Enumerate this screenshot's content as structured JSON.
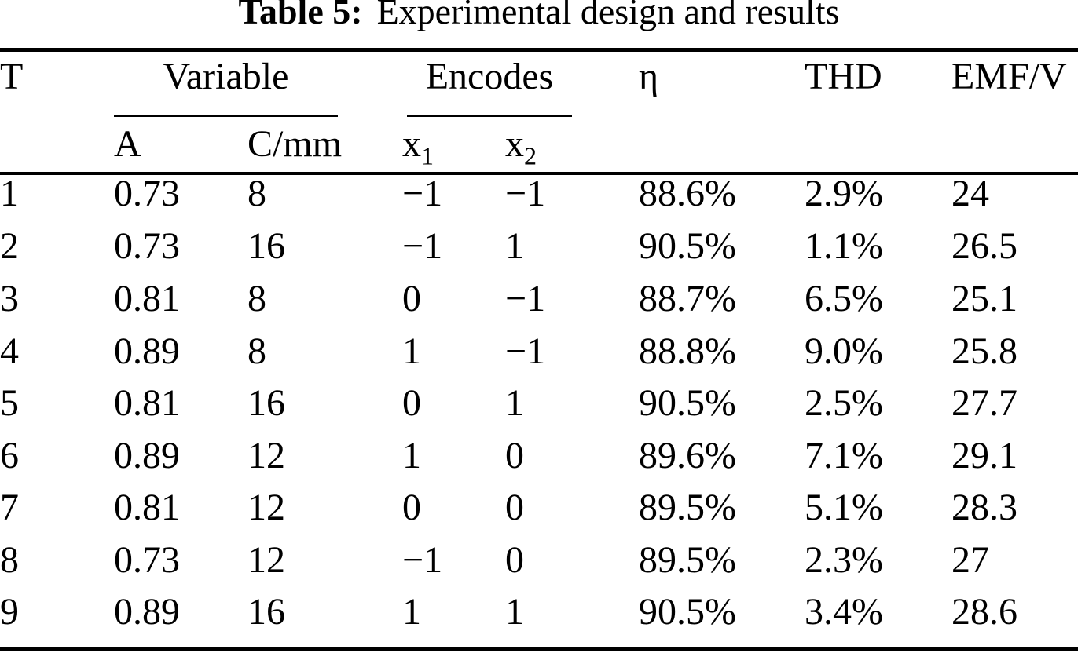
{
  "caption": {
    "label": "Table 5:",
    "text": "Experimental design and results"
  },
  "table": {
    "headers": {
      "t": "T",
      "variable": "Variable",
      "encodes": "Encodes",
      "a": "A",
      "c_mm": "C/mm",
      "x_base": "x",
      "x1_sub": "1",
      "x2_sub": "2",
      "eta": "η",
      "thd": "THD",
      "emf": "EMF/V"
    },
    "rows": [
      [
        "1",
        "0.73",
        "8",
        "−1",
        "−1",
        "88.6%",
        "2.9%",
        "24"
      ],
      [
        "2",
        "0.73",
        "16",
        "−1",
        "1",
        "90.5%",
        "1.1%",
        "26.5"
      ],
      [
        "3",
        "0.81",
        "8",
        "0",
        "−1",
        "88.7%",
        "6.5%",
        "25.1"
      ],
      [
        "4",
        "0.89",
        "8",
        "1",
        "−1",
        "88.8%",
        "9.0%",
        "25.8"
      ],
      [
        "5",
        "0.81",
        "16",
        "0",
        "1",
        "90.5%",
        "2.5%",
        "27.7"
      ],
      [
        "6",
        "0.89",
        "12",
        "1",
        "0",
        "89.6%",
        "7.1%",
        "29.1"
      ],
      [
        "7",
        "0.81",
        "12",
        "0",
        "0",
        "89.5%",
        "5.1%",
        "28.3"
      ],
      [
        "8",
        "0.73",
        "12",
        "−1",
        "0",
        "89.5%",
        "2.3%",
        "27"
      ],
      [
        "9",
        "0.89",
        "16",
        "1",
        "1",
        "90.5%",
        "3.4%",
        "28.6"
      ]
    ]
  },
  "colors": {
    "background": "#ffffff",
    "text": "#000000",
    "rule": "#000000"
  }
}
